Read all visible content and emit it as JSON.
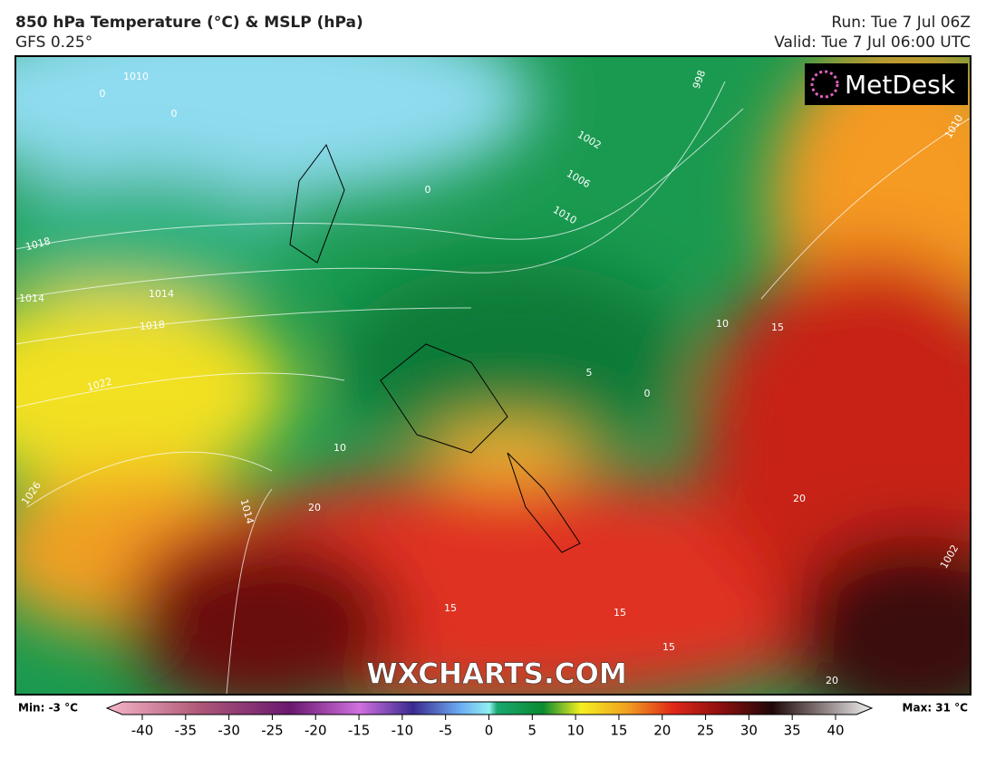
{
  "header": {
    "title": "850 hPa Temperature (°C) & MSLP (hPa)",
    "subtitle": "GFS 0.25°",
    "run": "Run: Tue 7 Jul 06Z",
    "valid": "Valid: Tue 7 Jul 06:00 UTC"
  },
  "logo": "MetDesk",
  "watermark": "WXCHARTS.COM",
  "map": {
    "contour_labels": [
      "1018",
      "1014",
      "1018",
      "1022",
      "1026",
      "1014",
      "1014",
      "1010",
      "0",
      "0",
      "0",
      "1002",
      "1006",
      "1010",
      "998",
      "1010",
      "10",
      "10",
      "15",
      "20",
      "15",
      "15",
      "15",
      "5",
      "0",
      "20",
      "1002",
      "20"
    ]
  },
  "colorbar": {
    "min_label": "Min: -3 °C",
    "max_label": "Max: 31 °C",
    "ticks": [
      -40,
      -35,
      -30,
      -25,
      -20,
      -15,
      -10,
      -5,
      0,
      5,
      10,
      15,
      20,
      25,
      30,
      35,
      40
    ]
  }
}
